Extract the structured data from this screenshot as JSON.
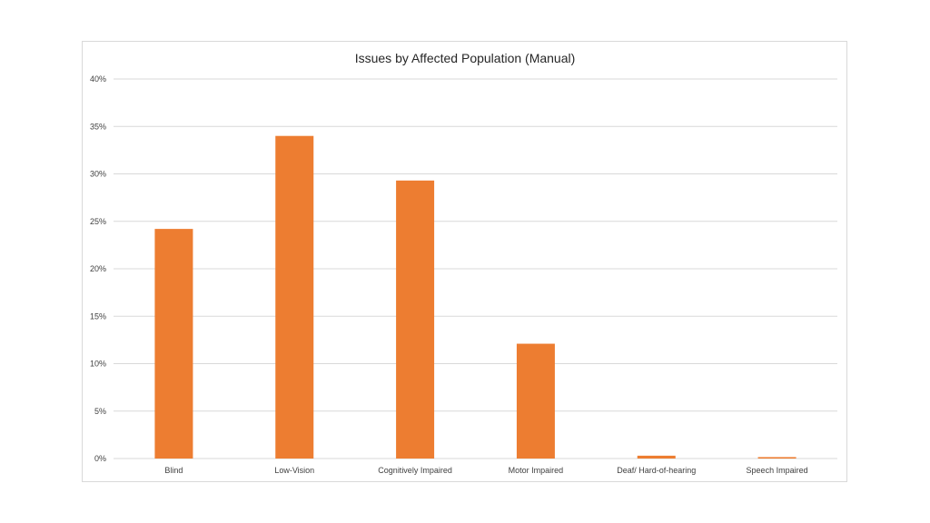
{
  "chart_data": {
    "type": "bar",
    "title": "Issues by Affected Population (Manual)",
    "xlabel": "",
    "ylabel": "",
    "categories": [
      "Blind",
      "Low-Vision",
      "Cognitively Impaired",
      "Motor Impaired",
      "Deaf/ Hard-of-hearing",
      "Speech Impaired"
    ],
    "values": [
      24.2,
      34.0,
      29.3,
      12.1,
      0.3,
      0.15
    ],
    "value_unit": "%",
    "ylim": [
      0,
      40
    ],
    "yticks": [
      "0%",
      "5%",
      "10%",
      "15%",
      "20%",
      "25%",
      "30%",
      "35%",
      "40%"
    ],
    "ytick_values": [
      0,
      5,
      10,
      15,
      20,
      25,
      30,
      35,
      40
    ],
    "grid": true,
    "legend": "none",
    "bar_color": "#ED7D31",
    "grid_color": "#d9d9d9"
  }
}
